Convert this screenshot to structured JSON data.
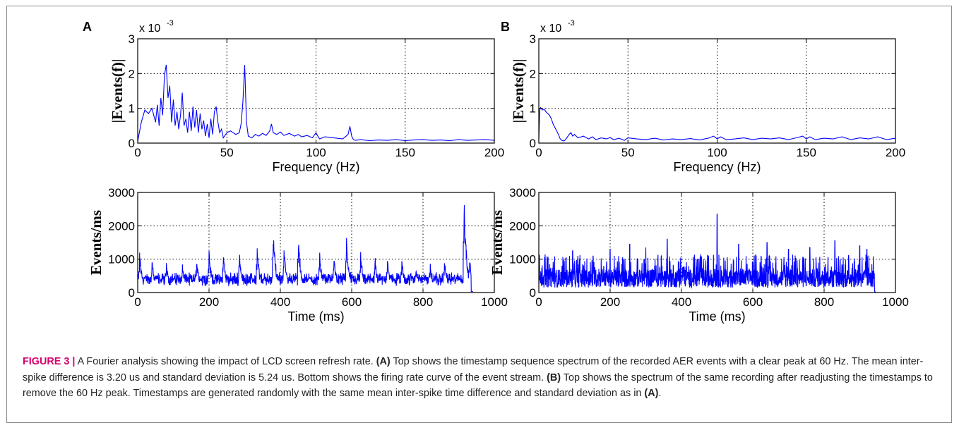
{
  "panels": [
    {
      "letter": "A"
    },
    {
      "letter": "B"
    }
  ],
  "chart_data": [
    {
      "panel": "A",
      "type": "line",
      "xlabel": "Frequency (Hz)",
      "ylabel": "|Events(f)|",
      "exponent_label": "x 10",
      "exponent_value": "-3",
      "xlim": [
        0,
        200
      ],
      "ylim": [
        0,
        3
      ],
      "xticks": [
        "0",
        "50",
        "100",
        "150",
        "200"
      ],
      "yticks": [
        "0",
        "1",
        "2",
        "3"
      ],
      "grid": true,
      "line_color": "#0000ff",
      "series": [
        {
          "x": [
            0,
            2,
            4,
            6,
            8,
            10,
            11,
            12,
            13,
            14,
            15,
            16,
            17,
            18,
            19,
            20,
            21,
            22,
            23,
            24,
            25,
            26,
            27,
            28,
            29,
            30,
            31,
            32,
            33,
            34,
            35,
            36,
            37,
            38,
            39,
            40,
            41,
            42,
            43,
            44,
            45,
            46,
            47,
            48,
            50,
            52,
            55,
            57,
            58,
            59,
            60,
            61,
            62,
            64,
            66,
            68,
            70,
            72,
            74,
            75,
            76,
            78,
            80,
            82,
            85,
            88,
            90,
            92,
            95,
            98,
            100,
            101,
            102,
            105,
            110,
            115,
            118,
            119,
            120,
            121,
            122,
            125,
            130,
            135,
            140,
            145,
            150,
            155,
            160,
            165,
            170,
            175,
            180,
            185,
            190,
            195,
            200
          ],
          "y": [
            0.05,
            0.6,
            0.95,
            0.85,
            1.0,
            0.6,
            1.1,
            0.5,
            1.3,
            0.8,
            1.95,
            2.25,
            1.3,
            1.65,
            0.6,
            1.25,
            0.5,
            0.9,
            0.4,
            0.8,
            1.45,
            0.5,
            0.7,
            0.3,
            0.9,
            0.35,
            1.05,
            0.45,
            0.95,
            0.3,
            0.85,
            0.4,
            0.65,
            0.2,
            0.55,
            0.15,
            0.7,
            0.25,
            0.9,
            1.05,
            0.6,
            0.3,
            0.4,
            0.15,
            0.3,
            0.35,
            0.25,
            0.3,
            0.55,
            1.2,
            2.25,
            0.6,
            0.2,
            0.15,
            0.25,
            0.2,
            0.28,
            0.22,
            0.35,
            0.55,
            0.3,
            0.25,
            0.32,
            0.22,
            0.28,
            0.2,
            0.25,
            0.18,
            0.22,
            0.15,
            0.3,
            0.2,
            0.12,
            0.18,
            0.15,
            0.12,
            0.25,
            0.48,
            0.2,
            0.1,
            0.08,
            0.1,
            0.07,
            0.09,
            0.08,
            0.1,
            0.07,
            0.09,
            0.1,
            0.08,
            0.09,
            0.07,
            0.1,
            0.08,
            0.09,
            0.1,
            0.08
          ]
        }
      ]
    },
    {
      "panel": "B",
      "type": "line",
      "xlabel": "Frequency (Hz)",
      "ylabel": "|Events(f)|",
      "exponent_label": "x 10",
      "exponent_value": "-3",
      "xlim": [
        0,
        200
      ],
      "ylim": [
        0,
        3
      ],
      "xticks": [
        "0",
        "50",
        "100",
        "150",
        "200"
      ],
      "yticks": [
        "0",
        "1",
        "2",
        "3"
      ],
      "grid": true,
      "line_color": "#0000ff",
      "series": [
        {
          "x": [
            0,
            0.5,
            1,
            2,
            3,
            4,
            5,
            6,
            7,
            8,
            9,
            10,
            11,
            12,
            13,
            14,
            15,
            17,
            18,
            19,
            20,
            22,
            25,
            28,
            30,
            32,
            35,
            38,
            40,
            42,
            45,
            48,
            50,
            55,
            60,
            65,
            70,
            75,
            80,
            85,
            90,
            95,
            98,
            100,
            102,
            105,
            110,
            115,
            120,
            125,
            130,
            135,
            140,
            145,
            148,
            150,
            152,
            155,
            160,
            165,
            170,
            175,
            180,
            185,
            190,
            195,
            200
          ],
          "y": [
            0.1,
            0.95,
            1.02,
            0.95,
            0.98,
            0.9,
            0.85,
            0.8,
            0.7,
            0.55,
            0.45,
            0.35,
            0.25,
            0.12,
            0.08,
            0.06,
            0.1,
            0.25,
            0.3,
            0.2,
            0.25,
            0.15,
            0.2,
            0.12,
            0.18,
            0.1,
            0.15,
            0.12,
            0.16,
            0.1,
            0.14,
            0.08,
            0.15,
            0.12,
            0.1,
            0.14,
            0.09,
            0.12,
            0.1,
            0.13,
            0.09,
            0.14,
            0.2,
            0.12,
            0.18,
            0.1,
            0.12,
            0.15,
            0.1,
            0.14,
            0.12,
            0.15,
            0.1,
            0.16,
            0.2,
            0.12,
            0.18,
            0.1,
            0.14,
            0.12,
            0.18,
            0.1,
            0.15,
            0.12,
            0.18,
            0.1,
            0.14
          ]
        }
      ]
    },
    {
      "panel": "A",
      "type": "line",
      "xlabel": "Time (ms)",
      "ylabel": "Events/ms",
      "xlim": [
        0,
        1000
      ],
      "ylim": [
        0,
        3000
      ],
      "xticks": [
        "0",
        "200",
        "400",
        "600",
        "800",
        "1000"
      ],
      "yticks": [
        "0",
        "1000",
        "2000",
        "3000"
      ],
      "grid": true,
      "line_color": "#0000ff",
      "peaks": [
        {
          "t": 5,
          "h": 1150
        },
        {
          "t": 40,
          "h": 950
        },
        {
          "t": 80,
          "h": 900
        },
        {
          "t": 125,
          "h": 850
        },
        {
          "t": 165,
          "h": 950
        },
        {
          "t": 200,
          "h": 1200
        },
        {
          "t": 240,
          "h": 1150
        },
        {
          "t": 285,
          "h": 1250
        },
        {
          "t": 335,
          "h": 1350
        },
        {
          "t": 380,
          "h": 1950
        },
        {
          "t": 410,
          "h": 1350
        },
        {
          "t": 450,
          "h": 1700
        },
        {
          "t": 510,
          "h": 1200
        },
        {
          "t": 550,
          "h": 1100
        },
        {
          "t": 585,
          "h": 1700
        },
        {
          "t": 625,
          "h": 1150
        },
        {
          "t": 665,
          "h": 1000
        },
        {
          "t": 700,
          "h": 1100
        },
        {
          "t": 740,
          "h": 1000
        },
        {
          "t": 780,
          "h": 800
        },
        {
          "t": 820,
          "h": 850
        },
        {
          "t": 860,
          "h": 950
        },
        {
          "t": 915,
          "h": 2900
        },
        {
          "t": 930,
          "h": 1100
        }
      ],
      "baseline": 300,
      "t_end": 940
    },
    {
      "panel": "B",
      "type": "line",
      "xlabel": "Time (ms)",
      "ylabel": "Events/ms",
      "xlim": [
        0,
        1000
      ],
      "ylim": [
        0,
        3000
      ],
      "xticks": [
        "0",
        "200",
        "400",
        "600",
        "800",
        "1000"
      ],
      "yticks": [
        "0",
        "1000",
        "2000",
        "3000"
      ],
      "grid": true,
      "line_color": "#0000ff",
      "spikes": [
        {
          "t": 95,
          "h": 1250
        },
        {
          "t": 200,
          "h": 1300
        },
        {
          "t": 255,
          "h": 1450
        },
        {
          "t": 300,
          "h": 1350
        },
        {
          "t": 360,
          "h": 1600
        },
        {
          "t": 500,
          "h": 2350
        },
        {
          "t": 560,
          "h": 1450
        },
        {
          "t": 640,
          "h": 1500
        },
        {
          "t": 700,
          "h": 1300
        },
        {
          "t": 760,
          "h": 1350
        },
        {
          "t": 830,
          "h": 1550
        },
        {
          "t": 900,
          "h": 1400
        },
        {
          "t": 920,
          "h": 1300
        }
      ],
      "noise_max": 1000,
      "t_end": 945
    }
  ],
  "caption": {
    "label": "FIGURE 3 |",
    "segments": [
      {
        "text": " A Fourier analysis showing the impact of LCD screen refresh rate. ",
        "bold": false
      },
      {
        "text": "(A)",
        "bold": true
      },
      {
        "text": " Top shows the timestamp sequence spectrum of the recorded AER events with a clear peak at 60 Hz. The mean inter-spike difference is 3.20 us and standard deviation is 5.24 us. Bottom shows the firing rate curve of the event stream. ",
        "bold": false
      },
      {
        "text": "(B)",
        "bold": true
      },
      {
        "text": " Top shows the spectrum of the same recording after readjusting the timestamps to remove the 60 Hz peak. Timestamps are generated randomly with the same mean inter-spike time difference and standard deviation as in ",
        "bold": false
      },
      {
        "text": "(A)",
        "bold": true
      },
      {
        "text": ".",
        "bold": false
      }
    ]
  }
}
